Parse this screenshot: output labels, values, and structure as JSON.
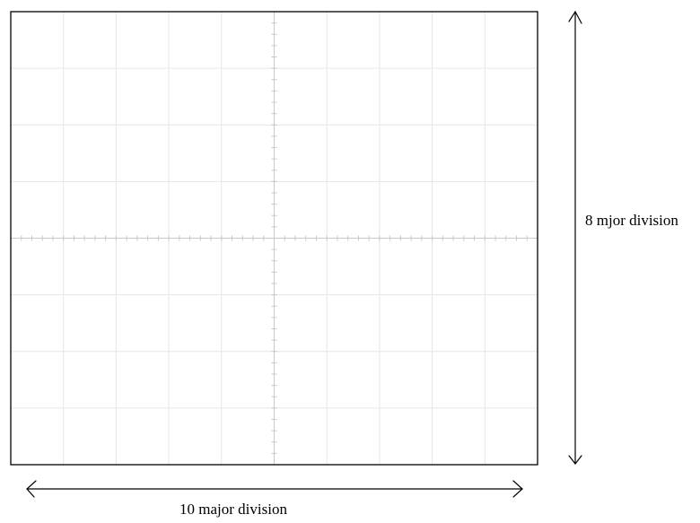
{
  "labels": {
    "horizontal": "10 major division",
    "vertical": "8 mjor division"
  },
  "graticule": {
    "major_divisions_x": 10,
    "major_divisions_y": 8,
    "minor_ticks_per_division": 5,
    "grid_color": "#e6e6e6",
    "tick_color": "#c8c8c8",
    "frame_color": "#000000"
  }
}
